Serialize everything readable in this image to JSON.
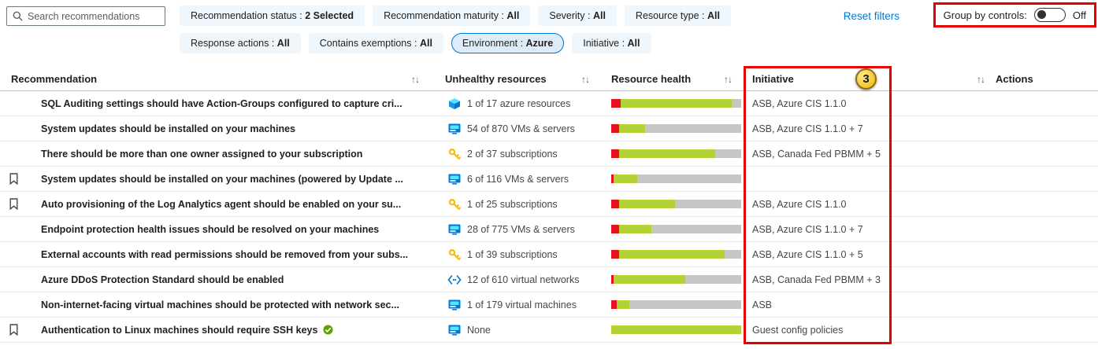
{
  "toolbar": {
    "search": {
      "placeholder": "Search recommendations"
    },
    "reset_filters_label": "Reset filters",
    "group_by": {
      "label": "Group by controls:",
      "state": "Off"
    },
    "filters_row1": [
      {
        "label": "Recommendation status",
        "value": "2 Selected",
        "selected": false
      },
      {
        "label": "Recommendation maturity",
        "value": "All",
        "selected": false
      },
      {
        "label": "Severity",
        "value": "All",
        "selected": false
      },
      {
        "label": "Resource type",
        "value": "All",
        "selected": false
      }
    ],
    "filters_row2": [
      {
        "label": "Response actions",
        "value": "All",
        "selected": false
      },
      {
        "label": "Contains exemptions",
        "value": "All",
        "selected": false
      },
      {
        "label": "Environment",
        "value": "Azure",
        "selected": true
      },
      {
        "label": "Initiative",
        "value": "All",
        "selected": false
      }
    ]
  },
  "annotations": {
    "step_badge": "3"
  },
  "table": {
    "headers": {
      "recommendation": "Recommendation",
      "unhealthy": "Unhealthy resources",
      "health": "Resource health",
      "initiative": "Initiative",
      "actions": "Actions"
    },
    "rows": [
      {
        "bookmarked": false,
        "icon": "sql-resource-icon",
        "recommendation": "SQL Auditing settings should have Action-Groups configured to capture cri...",
        "unhealthy": "1 of 17 azure resources",
        "bar": {
          "red": 7,
          "green": 86
        },
        "initiative": "ASB, Azure CIS 1.1.0",
        "checked": false
      },
      {
        "bookmarked": false,
        "icon": "vm-icon",
        "recommendation": "System updates should be installed on your machines",
        "unhealthy": "54 of 870 VMs & servers",
        "bar": {
          "red": 6,
          "green": 20
        },
        "initiative": "ASB, Azure CIS 1.1.0 + 7",
        "checked": false
      },
      {
        "bookmarked": false,
        "icon": "key-icon",
        "recommendation": "There should be more than one owner assigned to your subscription",
        "unhealthy": "2 of 37 subscriptions",
        "bar": {
          "red": 6,
          "green": 74
        },
        "initiative": "ASB, Canada Fed PBMM + 5",
        "checked": false
      },
      {
        "bookmarked": true,
        "icon": "vm-icon",
        "recommendation": "System updates should be installed on your machines (powered by Update ...",
        "unhealthy": "6 of 116 VMs & servers",
        "bar": {
          "red": 2,
          "green": 18
        },
        "initiative": "",
        "checked": false
      },
      {
        "bookmarked": true,
        "icon": "key-icon",
        "recommendation": "Auto provisioning of the Log Analytics agent should be enabled on your su...",
        "unhealthy": "1 of 25 subscriptions",
        "bar": {
          "red": 6,
          "green": 43
        },
        "initiative": "ASB, Azure CIS 1.1.0",
        "checked": false
      },
      {
        "bookmarked": false,
        "icon": "vm-icon",
        "recommendation": "Endpoint protection health issues should be resolved on your machines",
        "unhealthy": "28 of 775 VMs & servers",
        "bar": {
          "red": 6,
          "green": 25
        },
        "initiative": "ASB, Azure CIS 1.1.0 + 7",
        "checked": false
      },
      {
        "bookmarked": false,
        "icon": "key-icon",
        "recommendation": "External accounts with read permissions should be removed from your subs...",
        "unhealthy": "1 of 39 subscriptions",
        "bar": {
          "red": 6,
          "green": 81
        },
        "initiative": "ASB, Azure CIS 1.1.0 + 5",
        "checked": false
      },
      {
        "bookmarked": false,
        "icon": "virtual-network-icon",
        "recommendation": "Azure DDoS Protection Standard should be enabled",
        "unhealthy": "12 of 610 virtual networks",
        "bar": {
          "red": 2,
          "green": 55
        },
        "initiative": "ASB, Canada Fed PBMM + 3",
        "checked": false
      },
      {
        "bookmarked": false,
        "icon": "vm-icon",
        "recommendation": "Non-internet-facing virtual machines should be protected with network sec...",
        "unhealthy": "1 of 179 virtual machines",
        "bar": {
          "red": 4,
          "green": 10
        },
        "initiative": "ASB",
        "checked": false
      },
      {
        "bookmarked": true,
        "icon": "vm-icon",
        "recommendation": "Authentication to Linux machines should require SSH keys",
        "unhealthy": "None",
        "bar": {
          "red": 0,
          "green": 100
        },
        "initiative": "Guest config policies",
        "checked": true
      }
    ]
  }
}
